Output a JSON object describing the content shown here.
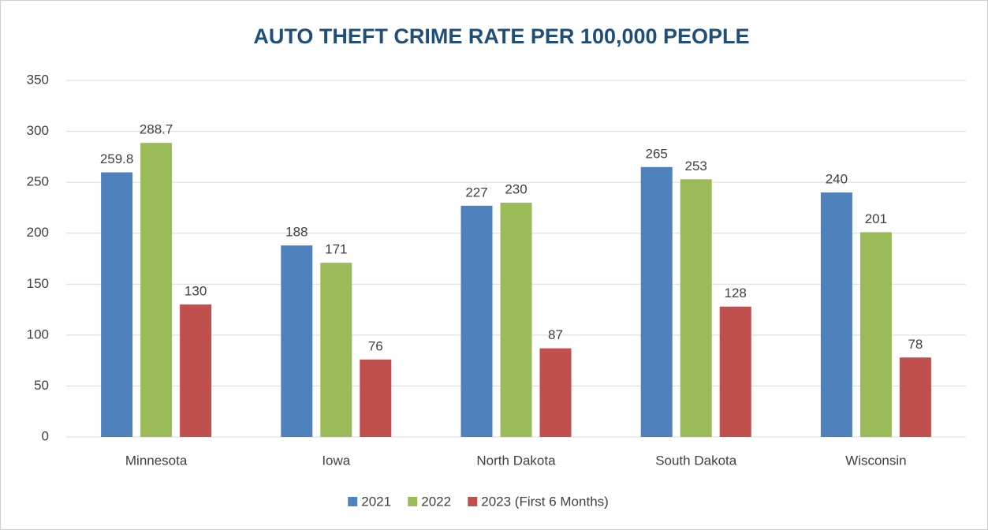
{
  "chart_data": {
    "type": "bar",
    "title": "AUTO THEFT CRIME RATE PER 100,000 PEOPLE",
    "categories": [
      "Minnesota",
      "Iowa",
      "North Dakota",
      "South Dakota",
      "Wisconsin"
    ],
    "series": [
      {
        "name": "2021",
        "color": "#4f81bd",
        "values": [
          259.8,
          188,
          227,
          265,
          240
        ]
      },
      {
        "name": "2022",
        "color": "#9bbb59",
        "values": [
          288.7,
          171,
          230,
          253,
          201
        ]
      },
      {
        "name": "2023 (First 6 Months)",
        "color": "#c0504d",
        "values": [
          130,
          76,
          87,
          128,
          78
        ]
      }
    ],
    "ylim": [
      0,
      350
    ],
    "yticks": [
      0,
      50,
      100,
      150,
      200,
      250,
      300,
      350
    ],
    "grid": true,
    "legend": "bottom"
  }
}
